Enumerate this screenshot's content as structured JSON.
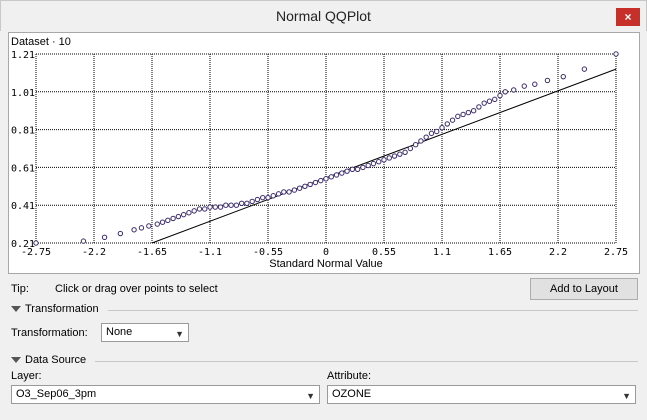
{
  "window": {
    "title": "Normal QQPlot",
    "close": "×"
  },
  "chart_data": {
    "type": "scatter",
    "title": "Dataset · 10",
    "xlabel": "Standard Normal Value",
    "ylabel": "",
    "x_ticks": [
      "-2.75",
      "-2.2",
      "-1.65",
      "-1.1",
      "-0.55",
      "0",
      "0.55",
      "1.1",
      "1.65",
      "2.2",
      "2.75"
    ],
    "y_ticks": [
      "0.21",
      "0.41",
      "0.61",
      "0.81",
      "1.01",
      "1.21"
    ],
    "xlim": [
      -2.75,
      2.75
    ],
    "ylim": [
      0.21,
      1.21
    ],
    "grid": true,
    "reference_line": {
      "x": [
        -1.65,
        2.75
      ],
      "y": [
        0.21,
        1.13
      ]
    },
    "points": [
      [
        -2.75,
        0.21
      ],
      [
        -2.3,
        0.22
      ],
      [
        -2.1,
        0.24
      ],
      [
        -1.95,
        0.26
      ],
      [
        -1.82,
        0.28
      ],
      [
        -1.75,
        0.29
      ],
      [
        -1.68,
        0.3
      ],
      [
        -1.6,
        0.31
      ],
      [
        -1.55,
        0.32
      ],
      [
        -1.5,
        0.33
      ],
      [
        -1.45,
        0.34
      ],
      [
        -1.4,
        0.35
      ],
      [
        -1.35,
        0.36
      ],
      [
        -1.3,
        0.37
      ],
      [
        -1.25,
        0.38
      ],
      [
        -1.2,
        0.39
      ],
      [
        -1.15,
        0.39
      ],
      [
        -1.1,
        0.4
      ],
      [
        -1.05,
        0.4
      ],
      [
        -1.0,
        0.4
      ],
      [
        -0.95,
        0.41
      ],
      [
        -0.9,
        0.41
      ],
      [
        -0.85,
        0.41
      ],
      [
        -0.8,
        0.42
      ],
      [
        -0.75,
        0.42
      ],
      [
        -0.7,
        0.43
      ],
      [
        -0.65,
        0.44
      ],
      [
        -0.6,
        0.45
      ],
      [
        -0.55,
        0.45
      ],
      [
        -0.5,
        0.46
      ],
      [
        -0.45,
        0.47
      ],
      [
        -0.4,
        0.48
      ],
      [
        -0.35,
        0.48
      ],
      [
        -0.3,
        0.49
      ],
      [
        -0.25,
        0.5
      ],
      [
        -0.2,
        0.51
      ],
      [
        -0.15,
        0.52
      ],
      [
        -0.1,
        0.53
      ],
      [
        -0.05,
        0.54
      ],
      [
        0,
        0.55
      ],
      [
        0.05,
        0.56
      ],
      [
        0.1,
        0.57
      ],
      [
        0.15,
        0.58
      ],
      [
        0.2,
        0.59
      ],
      [
        0.25,
        0.6
      ],
      [
        0.3,
        0.6
      ],
      [
        0.35,
        0.61
      ],
      [
        0.4,
        0.62
      ],
      [
        0.45,
        0.63
      ],
      [
        0.5,
        0.64
      ],
      [
        0.55,
        0.65
      ],
      [
        0.6,
        0.66
      ],
      [
        0.65,
        0.67
      ],
      [
        0.7,
        0.68
      ],
      [
        0.75,
        0.69
      ],
      [
        0.8,
        0.71
      ],
      [
        0.85,
        0.73
      ],
      [
        0.9,
        0.75
      ],
      [
        0.95,
        0.77
      ],
      [
        1.0,
        0.79
      ],
      [
        1.05,
        0.8
      ],
      [
        1.1,
        0.82
      ],
      [
        1.15,
        0.84
      ],
      [
        1.2,
        0.86
      ],
      [
        1.25,
        0.88
      ],
      [
        1.3,
        0.89
      ],
      [
        1.35,
        0.9
      ],
      [
        1.4,
        0.91
      ],
      [
        1.45,
        0.93
      ],
      [
        1.5,
        0.95
      ],
      [
        1.55,
        0.96
      ],
      [
        1.6,
        0.97
      ],
      [
        1.65,
        0.99
      ],
      [
        1.7,
        1.01
      ],
      [
        1.78,
        1.02
      ],
      [
        1.88,
        1.04
      ],
      [
        1.98,
        1.05
      ],
      [
        2.1,
        1.07
      ],
      [
        2.25,
        1.09
      ],
      [
        2.45,
        1.13
      ],
      [
        2.75,
        1.21
      ]
    ]
  },
  "tip": {
    "label": "Tip:",
    "text": "Click or drag over points to select"
  },
  "add_to_layout": "Add to Layout",
  "transformation_section": "Transformation",
  "transformation": {
    "label": "Transformation:",
    "value": "None"
  },
  "data_source_section": "Data Source",
  "layer": {
    "label": "Layer:",
    "value": "O3_Sep06_3pm"
  },
  "attribute": {
    "label": "Attribute:",
    "value": "OZONE"
  }
}
